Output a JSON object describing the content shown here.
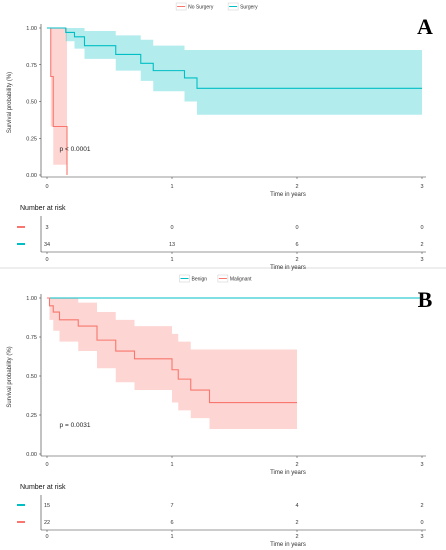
{
  "chart_data": [
    {
      "type": "line",
      "panel_label": "A",
      "legend": [
        {
          "name": "No Surgery",
          "color": "#f8766d"
        },
        {
          "name": "Surgery",
          "color": "#00bfc4"
        }
      ],
      "ylabel": "Survival probability (%)",
      "xlabel": "Time in years",
      "xlim": [
        0,
        3
      ],
      "ylim": [
        0,
        1
      ],
      "yticks": [
        "0.00",
        "0.25",
        "0.50",
        "0.75",
        "1.00"
      ],
      "xticks": [
        "0",
        "1",
        "2",
        "3"
      ],
      "annotation": "p < 0.0001",
      "series": [
        {
          "name": "No Surgery",
          "color": "#f8766d",
          "x": [
            0,
            0.03,
            0.05,
            0.06,
            0.16
          ],
          "y": [
            1.0,
            0.67,
            0.33,
            0.33,
            0.0
          ],
          "ci_upper": [
            1.0,
            1.0,
            1.0,
            1.0,
            0.33
          ],
          "ci_lower": [
            1.0,
            0.33,
            0.07,
            0.07,
            0.0
          ]
        },
        {
          "name": "Surgery",
          "color": "#00bfc4",
          "x": [
            0,
            0.15,
            0.22,
            0.3,
            0.55,
            0.75,
            0.85,
            1.1,
            1.2,
            3.0
          ],
          "y": [
            1.0,
            0.97,
            0.94,
            0.88,
            0.82,
            0.76,
            0.71,
            0.66,
            0.59,
            0.59
          ],
          "ci_upper": [
            1.0,
            1.0,
            1.0,
            0.98,
            0.95,
            0.92,
            0.88,
            0.85,
            0.85,
            0.85
          ],
          "ci_lower": [
            1.0,
            0.91,
            0.86,
            0.79,
            0.71,
            0.64,
            0.57,
            0.5,
            0.41,
            0.41
          ]
        }
      ],
      "risk_table": {
        "title": "Number at risk",
        "xticks": [
          "0",
          "1",
          "2",
          "3"
        ],
        "xlabel": "Time in years",
        "rows": [
          {
            "color": "#f8766d",
            "values": [
              "3",
              "0",
              "0",
              "0"
            ]
          },
          {
            "color": "#00bfc4",
            "values": [
              "34",
              "13",
              "6",
              "2"
            ]
          }
        ]
      }
    },
    {
      "type": "line",
      "panel_label": "B",
      "legend": [
        {
          "name": "Benign",
          "color": "#00bfc4"
        },
        {
          "name": "Malignant",
          "color": "#f8766d"
        }
      ],
      "ylabel": "Survival probability (%)",
      "xlabel": "Time in years",
      "xlim": [
        0,
        3
      ],
      "ylim": [
        0,
        1
      ],
      "yticks": [
        "0.00",
        "0.25",
        "0.50",
        "0.75",
        "1.00"
      ],
      "xticks": [
        "0",
        "1",
        "2",
        "3"
      ],
      "annotation": "p = 0.0031",
      "series": [
        {
          "name": "Benign",
          "color": "#00bfc4",
          "x": [
            0,
            3.0
          ],
          "y": [
            1.0,
            1.0
          ],
          "ci_upper": [
            1.0,
            1.0
          ],
          "ci_lower": [
            1.0,
            1.0
          ]
        },
        {
          "name": "Malignant",
          "color": "#f8766d",
          "x": [
            0,
            0.02,
            0.05,
            0.1,
            0.25,
            0.4,
            0.55,
            0.7,
            1.0,
            1.05,
            1.15,
            1.3,
            2.0
          ],
          "y": [
            1.0,
            0.95,
            0.91,
            0.86,
            0.82,
            0.73,
            0.66,
            0.61,
            0.54,
            0.48,
            0.41,
            0.33,
            0.33
          ],
          "ci_upper": [
            1.0,
            1.0,
            1.0,
            1.0,
            0.97,
            0.91,
            0.86,
            0.82,
            0.77,
            0.72,
            0.67,
            0.67,
            0.67
          ],
          "ci_lower": [
            1.0,
            0.86,
            0.79,
            0.72,
            0.66,
            0.55,
            0.46,
            0.41,
            0.33,
            0.28,
            0.23,
            0.16,
            0.16
          ]
        }
      ],
      "risk_table": {
        "title": "Number at risk",
        "xticks": [
          "0",
          "1",
          "2",
          "3"
        ],
        "xlabel": "Time in years",
        "rows": [
          {
            "color": "#00bfc4",
            "values": [
              "15",
              "7",
              "4",
              "2"
            ]
          },
          {
            "color": "#f8766d",
            "values": [
              "22",
              "6",
              "2",
              "0"
            ]
          }
        ]
      }
    }
  ]
}
